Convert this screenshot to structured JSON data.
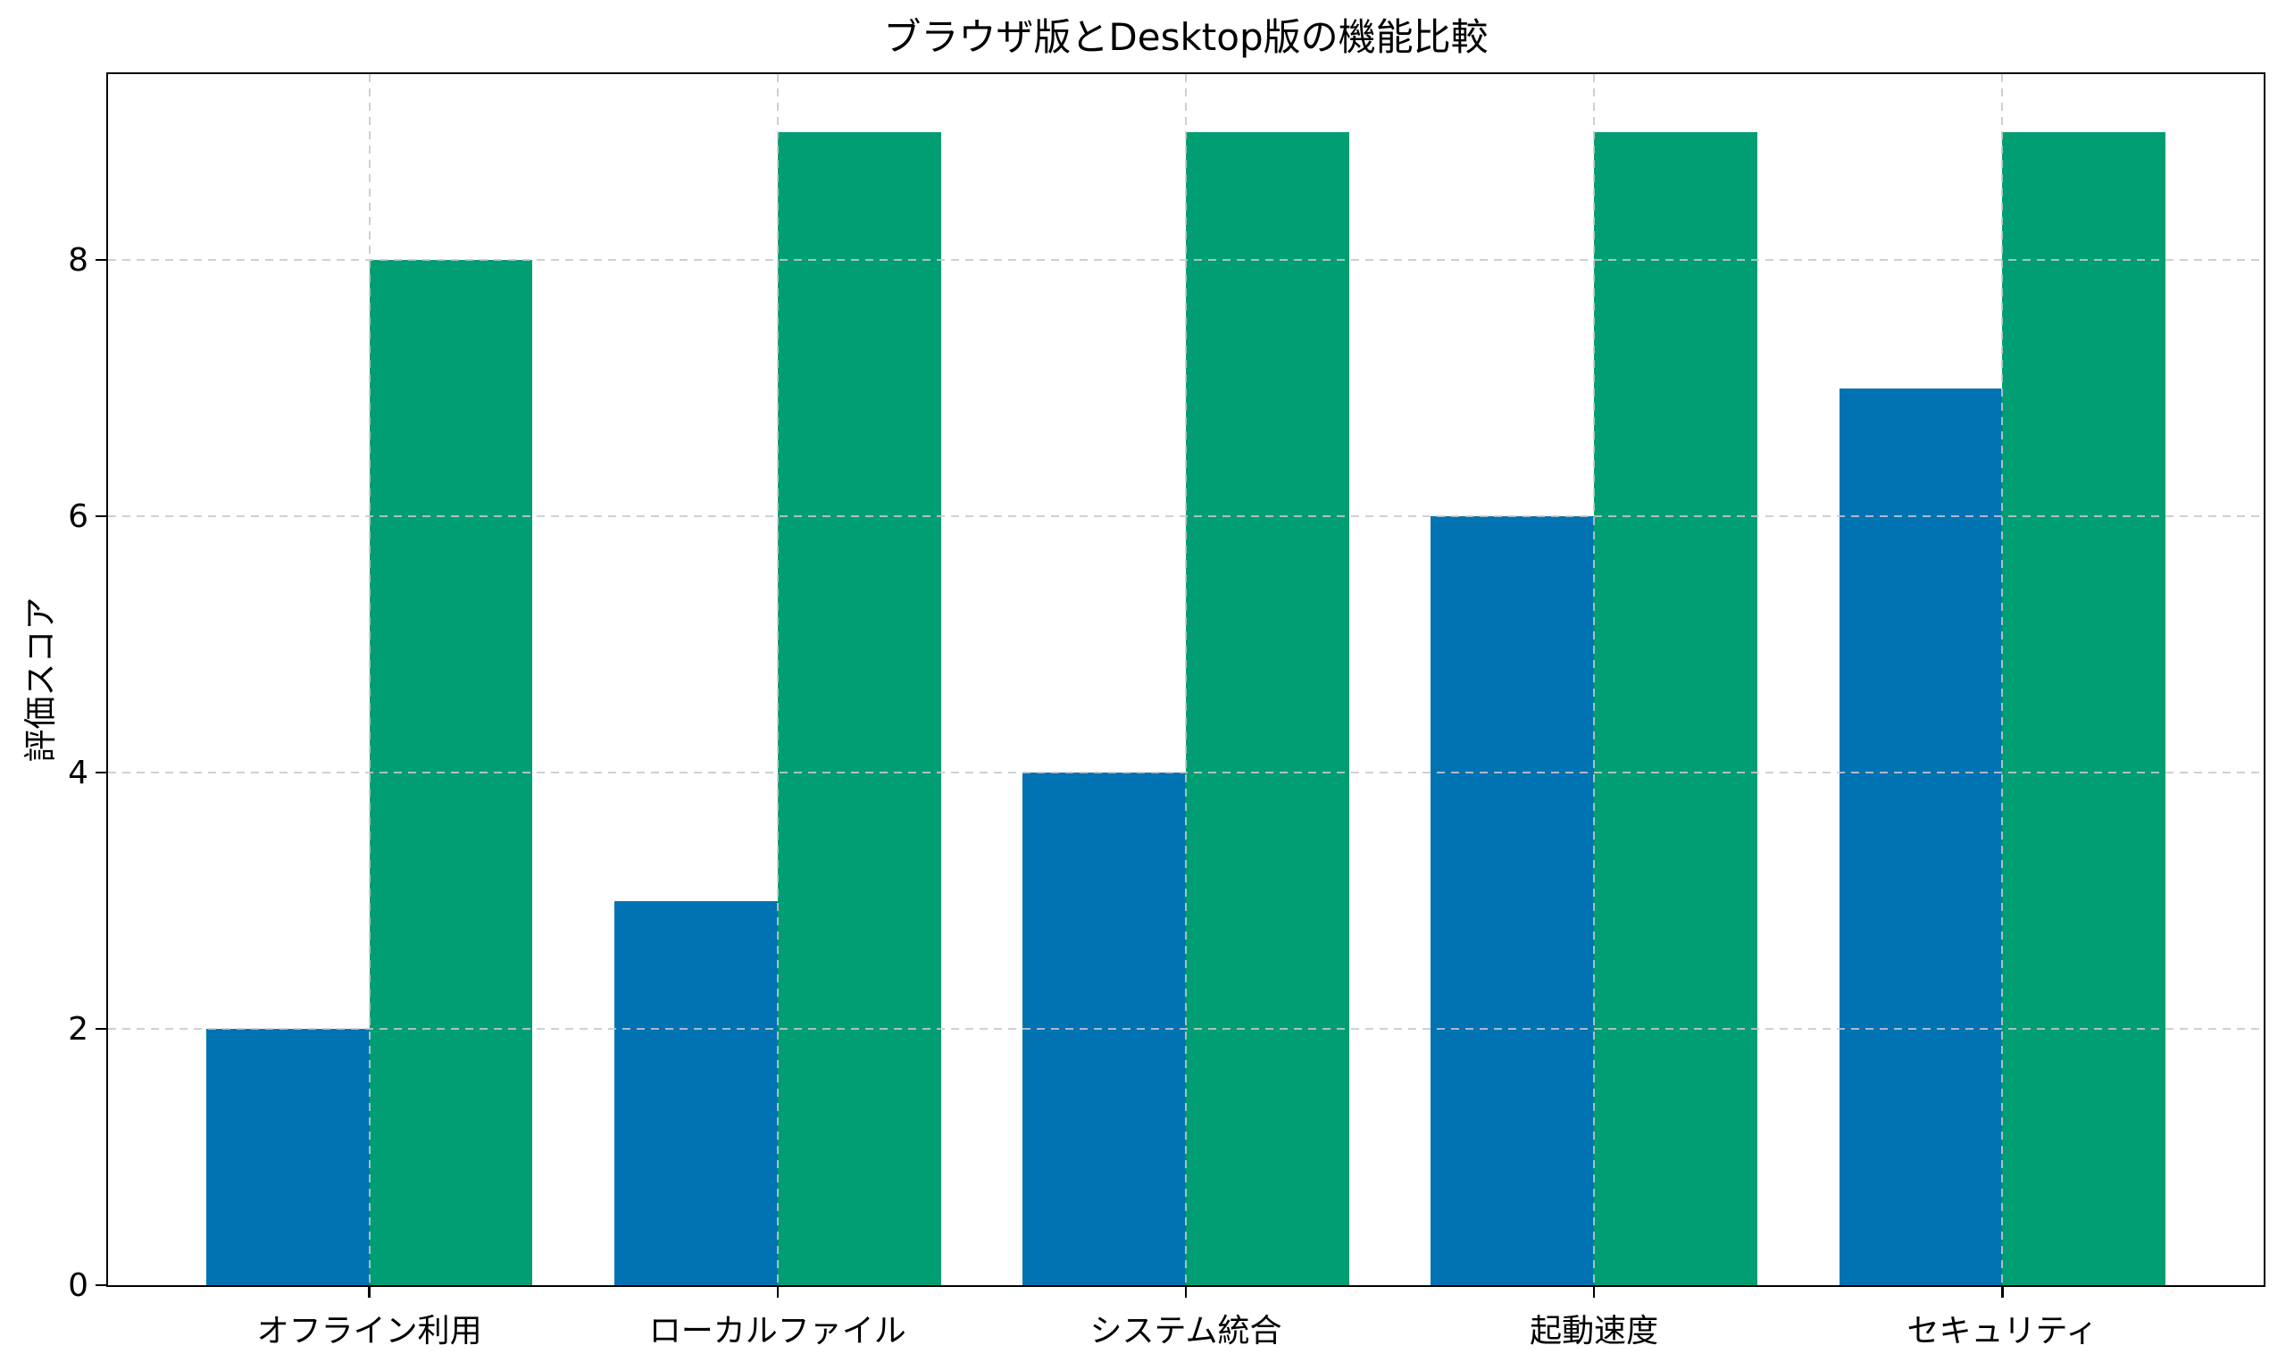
{
  "chart_data": {
    "type": "bar",
    "title": "ブラウザ版とDesktop版の機能比較",
    "ylabel": "評価スコア",
    "xlabel": "",
    "categories": [
      "オフライン利用",
      "ローカルファイル",
      "システム統合",
      "起動速度",
      "セキュリティ"
    ],
    "series": [
      {
        "name": "ブラウザ版",
        "color": "#0173b2",
        "values": [
          2,
          3,
          4,
          6,
          7
        ]
      },
      {
        "name": "Desktop版",
        "color": "#029e73",
        "values": [
          8,
          9,
          9,
          9,
          9
        ]
      }
    ],
    "ylim": [
      0,
      9.45
    ],
    "yticks": [
      0,
      2,
      4,
      6,
      8
    ],
    "bar_width_units": 0.4,
    "grid": {
      "style": "dashed",
      "color": "#cccccc",
      "axes": "both",
      "above_bars": true
    },
    "legend": "none",
    "spine_color": "#000000",
    "background_color": "#ffffff"
  }
}
